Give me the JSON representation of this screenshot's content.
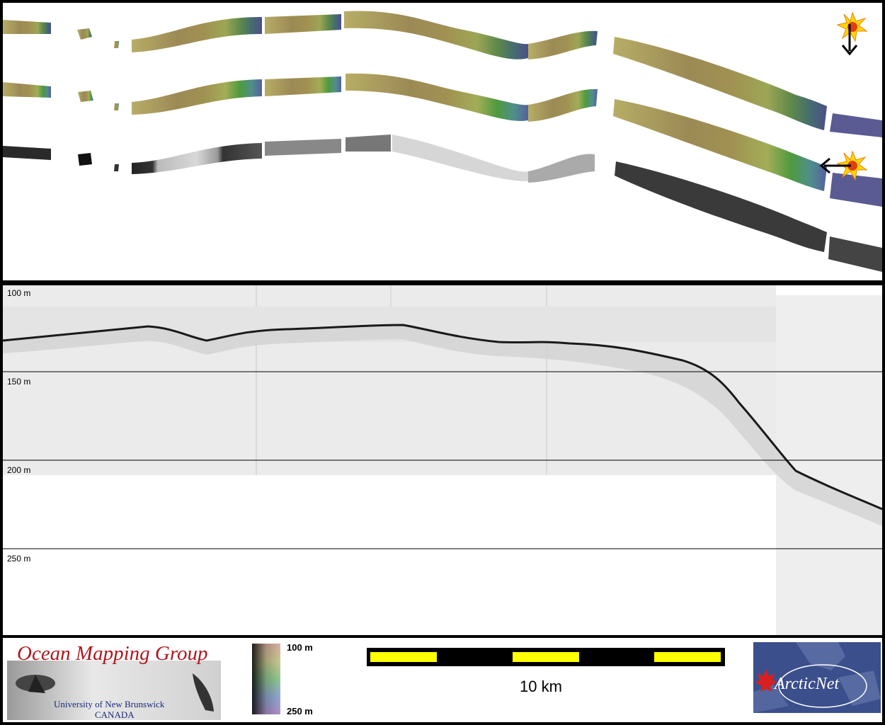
{
  "profile": {
    "depth_labels": [
      "100 m",
      "150 m",
      "200 m",
      "250 m"
    ]
  },
  "legend": {
    "top": "100 m",
    "bottom": "250 m"
  },
  "scale_bar": {
    "label": "10 km"
  },
  "logos": {
    "omg_title": "Ocean Mapping Group",
    "omg_line1": "University of New Brunswick",
    "omg_line2": "CANADA",
    "arcticnet": "ArcticNet"
  },
  "colors": {
    "scale_yellow": "#ffff00",
    "omg_red": "#b0171c",
    "arctic_blue": "#3b4f8c"
  }
}
